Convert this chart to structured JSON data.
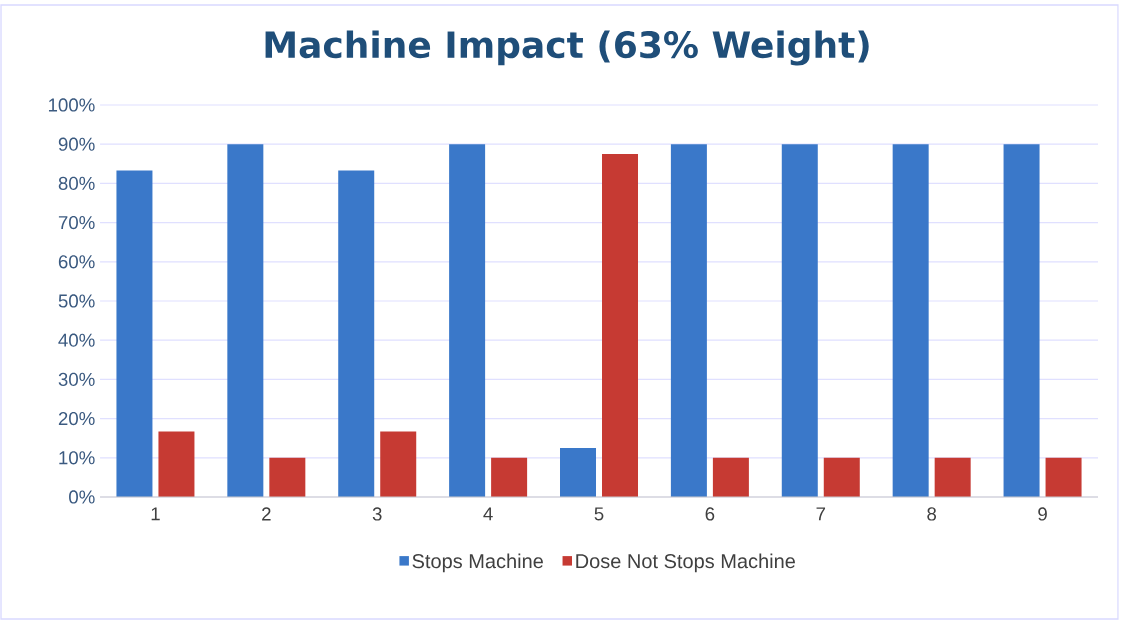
{
  "chart_data": {
    "type": "bar",
    "title": "Machine Impact (63% Weight)",
    "categories": [
      "1",
      "2",
      "3",
      "4",
      "5",
      "6",
      "7",
      "8",
      "9"
    ],
    "series": [
      {
        "name": "Stops Machine",
        "color": "#3a78c9",
        "values": [
          83.3,
          90,
          83.3,
          90,
          12.5,
          90,
          90,
          90,
          90
        ]
      },
      {
        "name": "Dose Not Stops Machine",
        "color": "#c63a33",
        "values": [
          16.7,
          10,
          16.7,
          10,
          87.5,
          10,
          10,
          10,
          10
        ]
      }
    ],
    "ylim": [
      0,
      100
    ],
    "yticks": [
      {
        "value": 0,
        "label": "0%"
      },
      {
        "value": 10,
        "label": "10%"
      },
      {
        "value": 20,
        "label": "20%"
      },
      {
        "value": 30,
        "label": "30%"
      },
      {
        "value": 40,
        "label": "40%"
      },
      {
        "value": 50,
        "label": "50%"
      },
      {
        "value": 60,
        "label": "60%"
      },
      {
        "value": 70,
        "label": "70%"
      },
      {
        "value": 80,
        "label": "80%"
      },
      {
        "value": 90,
        "label": "90%"
      },
      {
        "value": 100,
        "label": "100%"
      }
    ],
    "grid": "y",
    "legend": "bottom"
  }
}
